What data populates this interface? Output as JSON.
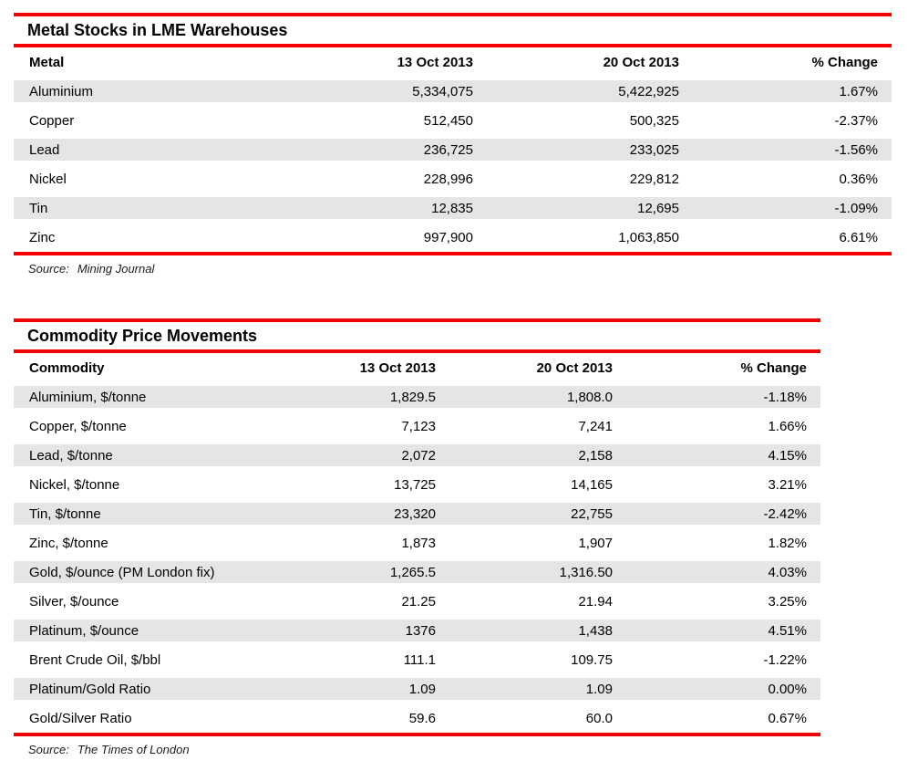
{
  "colors": {
    "accent_red": "#f40000",
    "row_shade": "#e5e5e5",
    "text": "#000000",
    "background": "#ffffff"
  },
  "chart_data": [
    {
      "type": "table",
      "title": "Metal Stocks in LME Warehouses",
      "columns": [
        "Metal",
        "13 Oct 2013",
        "20 Oct 2013",
        "% Change"
      ],
      "rows": [
        [
          "Aluminium",
          "5,334,075",
          "5,422,925",
          "1.67%"
        ],
        [
          "Copper",
          "512,450",
          "500,325",
          "-2.37%"
        ],
        [
          "Lead",
          "236,725",
          "233,025",
          "-1.56%"
        ],
        [
          "Nickel",
          "228,996",
          "229,812",
          "0.36%"
        ],
        [
          "Tin",
          "12,835",
          "12,695",
          "-1.09%"
        ],
        [
          "Zinc",
          "997,900",
          "1,063,850",
          "6.61%"
        ]
      ],
      "source_label": "Source:",
      "source_value": "Mining Journal"
    },
    {
      "type": "table",
      "title": "Commodity Price Movements",
      "columns": [
        "Commodity",
        "13 Oct 2013",
        "20 Oct 2013",
        "% Change"
      ],
      "rows": [
        [
          "Aluminium, $/tonne",
          "1,829.5",
          "1,808.0",
          "-1.18%"
        ],
        [
          "Copper, $/tonne",
          "7,123",
          "7,241",
          "1.66%"
        ],
        [
          "Lead, $/tonne",
          "2,072",
          "2,158",
          "4.15%"
        ],
        [
          "Nickel, $/tonne",
          "13,725",
          "14,165",
          "3.21%"
        ],
        [
          "Tin, $/tonne",
          "23,320",
          "22,755",
          "-2.42%"
        ],
        [
          "Zinc, $/tonne",
          "1,873",
          "1,907",
          "1.82%"
        ],
        [
          "Gold, $/ounce (PM London fix)",
          "1,265.5",
          "1,316.50",
          "4.03%"
        ],
        [
          "Silver, $/ounce",
          "21.25",
          "21.94",
          "3.25%"
        ],
        [
          "Platinum, $/ounce",
          "1376",
          "1,438",
          "4.51%"
        ],
        [
          "Brent Crude Oil, $/bbl",
          "111.1",
          "109.75",
          "-1.22%"
        ],
        [
          "Platinum/Gold Ratio",
          "1.09",
          "1.09",
          "0.00%"
        ],
        [
          "Gold/Silver Ratio",
          "59.6",
          "60.0",
          "0.67%"
        ]
      ],
      "source_label": "Source:",
      "source_value": "The Times of London"
    }
  ]
}
